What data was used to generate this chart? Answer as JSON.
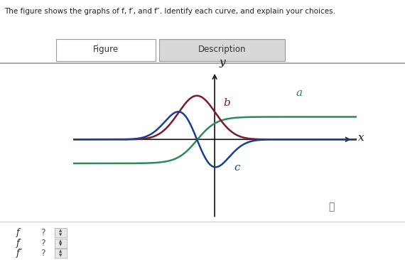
{
  "curve_a_color": "#2e8b57",
  "curve_b_color": "#7b1a2a",
  "curve_c_color": "#1a3f8f",
  "axis_color": "#111111",
  "label_a": "a",
  "label_b": "b",
  "label_c": "c",
  "label_x": "x",
  "label_y": "y",
  "xlim": [
    -4.0,
    4.0
  ],
  "ylim": [
    -2.8,
    2.5
  ],
  "bg_color": "#ffffff",
  "tab_fig_color": "#ffffff",
  "tab_desc_color": "#e0e0e0",
  "header_text": "The figure shows the graphs of f, f′, and f″. Identify each curve, and explain your choices.",
  "footer_labels": [
    "f",
    "f′",
    "f″"
  ],
  "info_symbol": "ⓘ"
}
